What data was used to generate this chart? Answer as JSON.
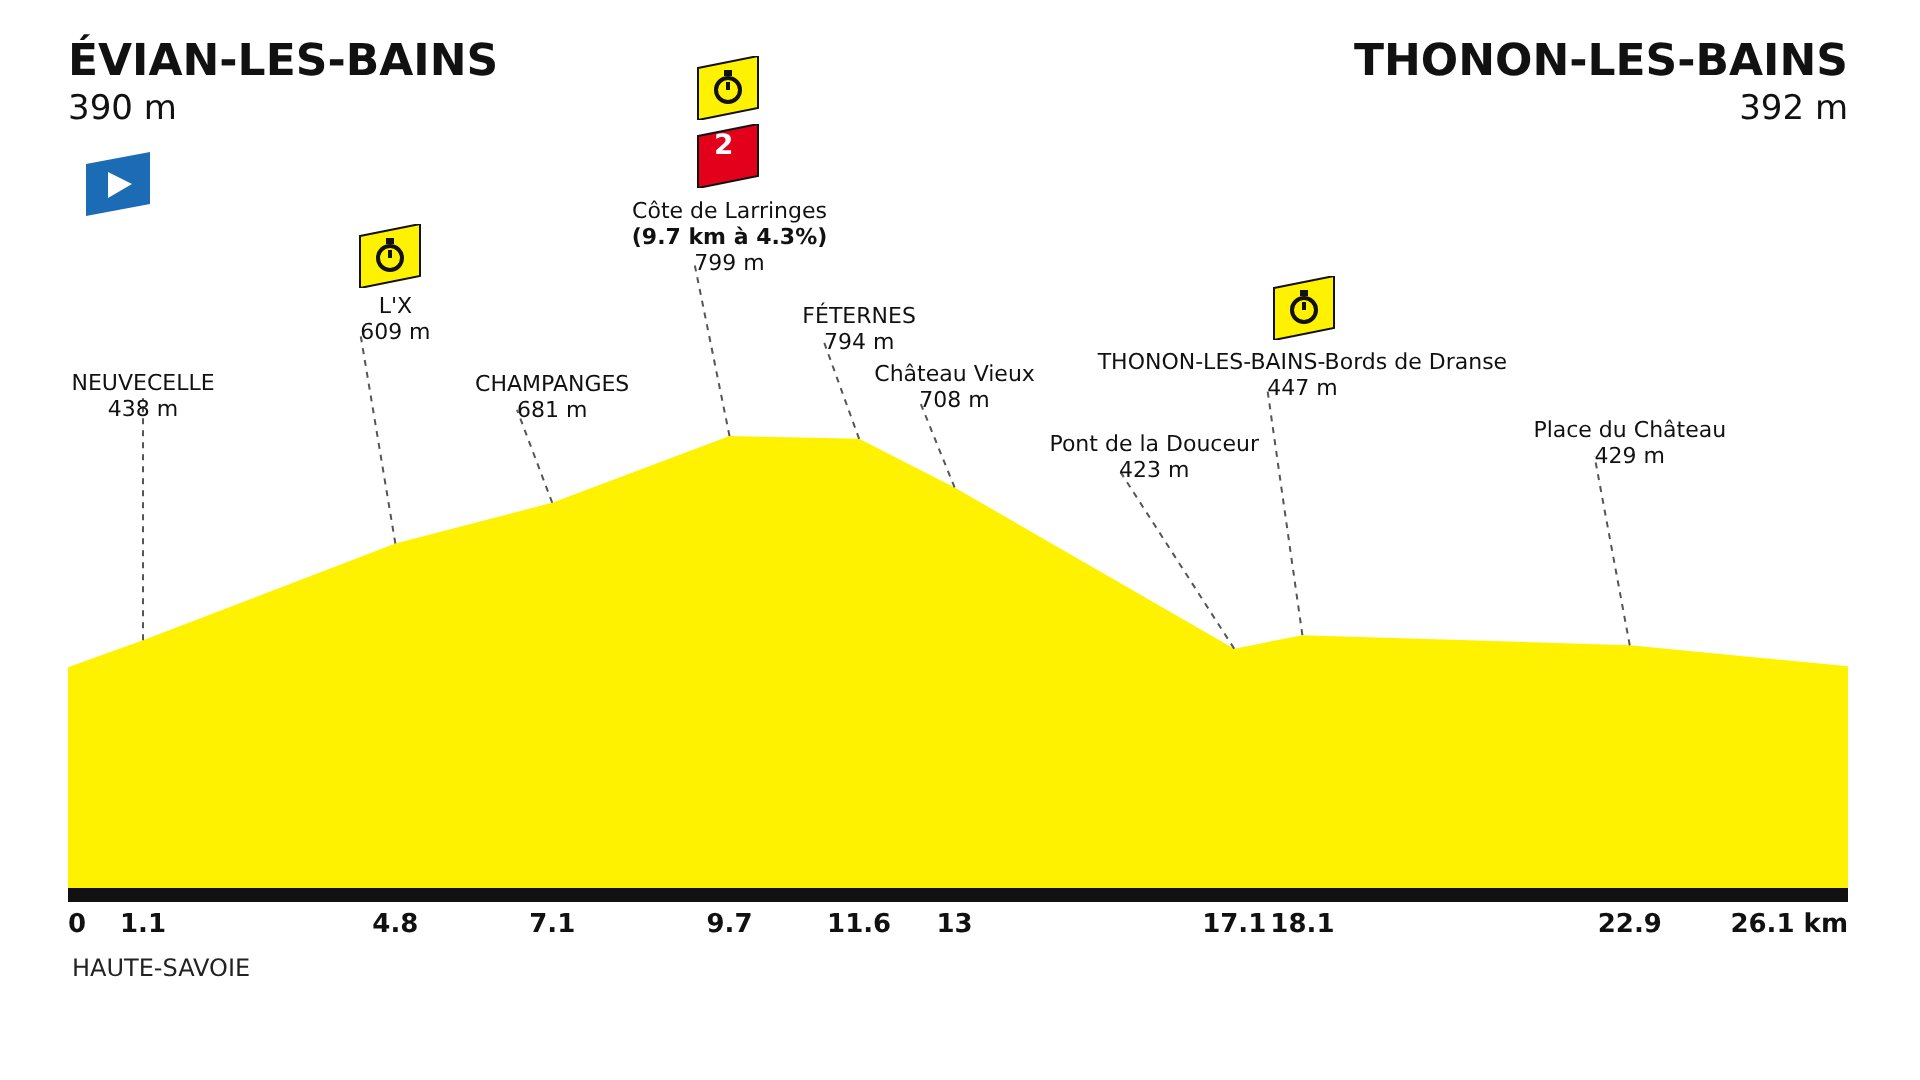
{
  "chart_data": {
    "type": "area",
    "x": [
      0,
      1.1,
      4.8,
      7.1,
      9.7,
      11.6,
      13,
      17.1,
      18.1,
      22.9,
      26.1
    ],
    "series": [
      {
        "color": "#fff200",
        "values": [
          390,
          438,
          609,
          681,
          799,
          794,
          708,
          423,
          447,
          429,
          392
        ],
        "value_labels": [
          null,
          "438 m",
          "609 m",
          "681 m",
          "799 m",
          "794 m",
          "708 m",
          "423 m",
          "447 m",
          "429 m",
          null
        ]
      }
    ],
    "xlim": [
      0,
      26.1
    ],
    "xticks": [
      0,
      1.1,
      4.8,
      7.1,
      9.7,
      11.6,
      13,
      17.1,
      18.1,
      22.9,
      {
        "value": 26.1,
        "label": "26.1 km"
      }
    ],
    "tick_labels": "x",
    "grid": false,
    "marker": "none",
    "annotations": [
      "ÉVIAN-LES-BAINS\n390 m",
      "THONON-LES-BAINS\n392 m",
      {
        "text": "NEUVECELLE",
        "x": 1.1,
        "y": 438
      },
      {
        "text": "L'X",
        "x": 4.8,
        "y": 609
      },
      {
        "text": "CHAMPANGES",
        "x": 7.1,
        "y": 681
      },
      {
        "text": "Côte de Larringes\n(9.7 km à 4.3%)",
        "x": 9.7,
        "y": 799
      },
      {
        "text": "FÉTERNES",
        "x": 11.6,
        "y": 794
      },
      {
        "text": "Château Vieux",
        "x": 13,
        "y": 708
      },
      {
        "text": "Pont de la Douceur",
        "x": 17.1,
        "y": 423
      },
      {
        "text": "THONON-LES-BAINS-Bords de Dranse",
        "x": 18.1,
        "y": 447
      },
      {
        "text": "Place du Château",
        "x": 22.9,
        "y": 429
      },
      "HAUTE-SAVOIE",
      "2"
    ]
  }
}
